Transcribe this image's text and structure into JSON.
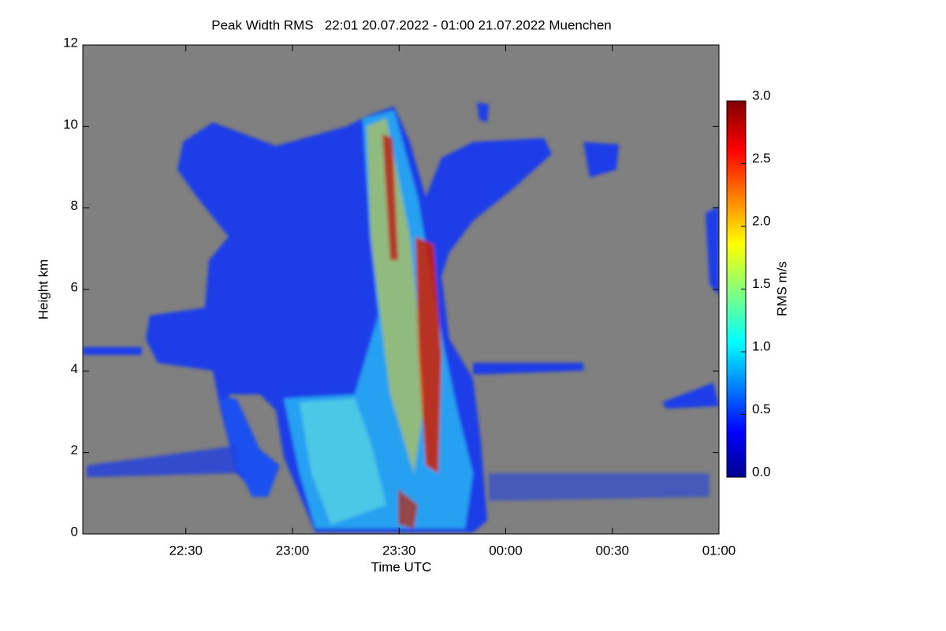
{
  "chart_data": {
    "type": "heatmap",
    "title": "Peak Width RMS   22:01 20.07.2022 - 01:00 21.07.2022 Muenchen",
    "x_label": "Time UTC",
    "y_label": "Height km",
    "xlim": [
      1321,
      1500
    ],
    "xticks": [
      {
        "value": 1350,
        "label": "22:30"
      },
      {
        "value": 1380,
        "label": "23:00"
      },
      {
        "value": 1410,
        "label": "23:30"
      },
      {
        "value": 1440,
        "label": "00:00"
      },
      {
        "value": 1470,
        "label": "00:30"
      },
      {
        "value": 1500,
        "label": "01:00"
      }
    ],
    "ylim": [
      0,
      12
    ],
    "yticks": [
      0,
      2,
      4,
      6,
      8,
      10,
      12
    ],
    "colorbar_label": "RMS m/s",
    "clim": [
      0,
      3
    ],
    "colorbar_ticks": [
      {
        "value": 0,
        "label": "0.0"
      },
      {
        "value": 0.5,
        "label": "0.5"
      },
      {
        "value": 1,
        "label": "1.0"
      },
      {
        "value": 1.5,
        "label": "1.5"
      },
      {
        "value": 2,
        "label": "2.0"
      },
      {
        "value": 2.5,
        "label": "2.5"
      },
      {
        "value": 3,
        "label": "3.0"
      }
    ],
    "background": "#808080"
  }
}
